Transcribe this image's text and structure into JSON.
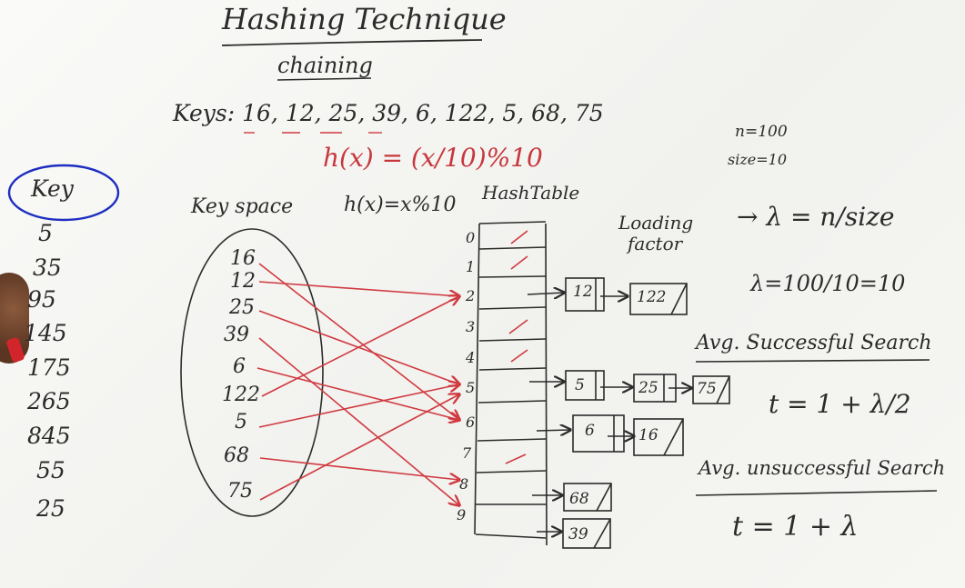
{
  "title": "Hashing Technique",
  "subtitle": "chaining",
  "keys_line": "Keys: 16, 12, 25, 39, 6, 122, 5, 68, 75",
  "hash_function_red": "h(x) = (x/10)%10",
  "n_value": "n=100",
  "size_value": "size=10",
  "key_space_label": "Key space",
  "hash_function": "h(x)=x%10",
  "hashtable_label": "HashTable",
  "loading_label": "Loading",
  "factor_label": "factor",
  "lambda_definition": "→ λ = n/size",
  "lambda_calc": "λ=100/10=10",
  "successful_search_label": "Avg. Successful Search",
  "successful_formula": "t = 1 + λ/2",
  "unsuccessful_search_label": "Avg. unsuccessful Search",
  "unsuccessful_formula": "t = 1 + λ",
  "key_column_header": "Key",
  "key_column_values": [
    "5",
    "35",
    "95",
    "145",
    "175",
    "265",
    "845",
    "55",
    "25"
  ],
  "key_space_values": [
    "16",
    "12",
    "25",
    "39",
    "6",
    "122",
    "5",
    "68",
    "75"
  ],
  "table_indices": [
    "0",
    "1",
    "2",
    "3",
    "4",
    "5",
    "6",
    "7",
    "8",
    "9"
  ],
  "chains": {
    "slot2": [
      "12",
      "122"
    ],
    "slot5": [
      "5",
      "25",
      "75"
    ],
    "slot6": [
      "6",
      "16"
    ],
    "slot8": [
      "68"
    ],
    "slot9": [
      "39"
    ]
  },
  "colors": {
    "ink": "#2b2b2b",
    "red_marker": "#c8373d",
    "blue_marker": "#1e2fc0"
  }
}
